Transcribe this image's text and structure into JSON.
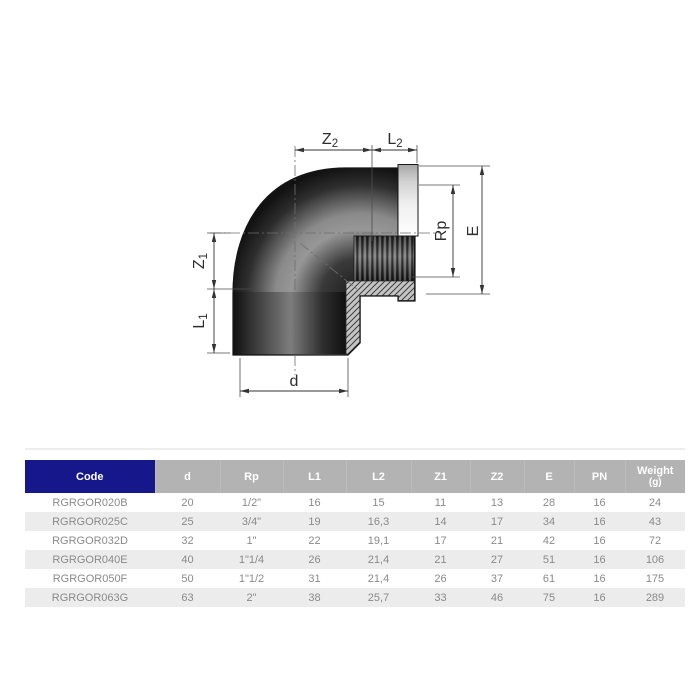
{
  "diagram": {
    "labels": {
      "z2": {
        "base": "Z",
        "sub": "2"
      },
      "l2": {
        "base": "L",
        "sub": "2"
      },
      "z1": {
        "base": "Z",
        "sub": "1"
      },
      "l1": {
        "base": "L",
        "sub": "1"
      },
      "d": {
        "base": "d",
        "sub": ""
      },
      "rp": {
        "base": "Rp",
        "sub": ""
      },
      "e": {
        "base": "E",
        "sub": ""
      }
    }
  },
  "table": {
    "columns": [
      {
        "label": "Code"
      },
      {
        "label": "d"
      },
      {
        "label": "Rp"
      },
      {
        "label": "L1"
      },
      {
        "label": "L2"
      },
      {
        "label": "Z1"
      },
      {
        "label": "Z2"
      },
      {
        "label": "E"
      },
      {
        "label": "PN"
      },
      {
        "label": "Weight",
        "label2": "(g)"
      }
    ],
    "rows": [
      [
        "RGRGOR020B",
        "20",
        "1/2\"",
        "16",
        "15",
        "11",
        "13",
        "28",
        "16",
        "24"
      ],
      [
        "RGRGOR025C",
        "25",
        "3/4\"",
        "19",
        "16,3",
        "14",
        "17",
        "34",
        "16",
        "43"
      ],
      [
        "RGRGOR032D",
        "32",
        "1\"",
        "22",
        "19,1",
        "17",
        "21",
        "42",
        "16",
        "72"
      ],
      [
        "RGRGOR040E",
        "40",
        "1\"1/4",
        "26",
        "21,4",
        "21",
        "27",
        "51",
        "16",
        "106"
      ],
      [
        "RGRGOR050F",
        "50",
        "1\"1/2",
        "31",
        "21,4",
        "26",
        "37",
        "61",
        "16",
        "175"
      ],
      [
        "RGRGOR063G",
        "63",
        "2\"",
        "38",
        "25,7",
        "33",
        "46",
        "75",
        "16",
        "289"
      ]
    ]
  },
  "colors": {
    "code_header_bg": "#17178c",
    "header_bg": "#b3b3b3",
    "header_text": "#ffffff",
    "row_alt_bg": "#ececec",
    "row_text": "#8a8a8a",
    "dimension_line": "#333333",
    "body_dark": "#161616",
    "body_highlight": "#979797"
  }
}
